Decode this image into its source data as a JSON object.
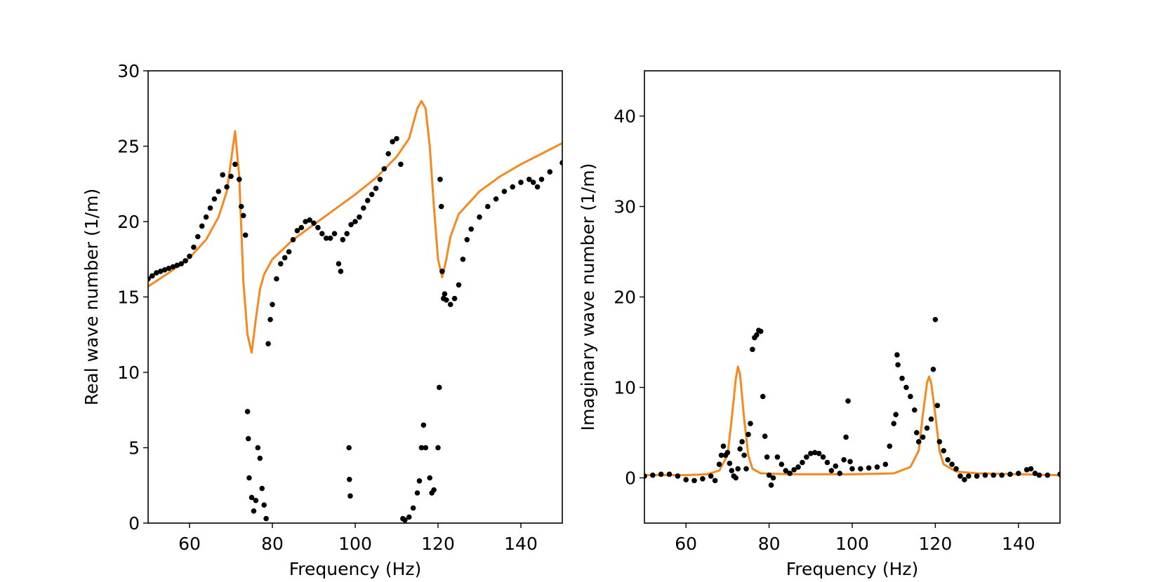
{
  "chart_data": [
    {
      "type": "line",
      "xlabel": "Frequency (Hz)",
      "ylabel": "Real wave number (1/m)",
      "xlim": [
        50,
        150
      ],
      "xticks": [
        60,
        80,
        100,
        120,
        140
      ],
      "ylim": [
        0,
        30
      ],
      "yticks": [
        0,
        5,
        10,
        15,
        20,
        25,
        30
      ],
      "series": [
        {
          "color": "#f5891f",
          "linestyle": "-",
          "x": [
            50,
            55,
            60,
            64,
            67,
            69,
            70,
            71,
            72,
            73,
            74,
            75,
            76,
            77,
            78,
            80,
            85,
            90,
            95,
            100,
            105,
            110,
            113,
            115,
            116,
            117,
            118,
            119,
            120,
            121,
            122,
            123,
            125,
            130,
            135,
            140,
            145,
            150
          ],
          "values": [
            15.7,
            16.6,
            17.6,
            18.8,
            20.3,
            22,
            24,
            26,
            23,
            16,
            12.5,
            11.3,
            13.5,
            15.5,
            16.5,
            17.5,
            18.8,
            19.8,
            20.8,
            21.8,
            22.9,
            24.3,
            25.5,
            27.5,
            28,
            27.5,
            25,
            21,
            17.5,
            16.3,
            17.5,
            19,
            20.5,
            22,
            23,
            23.8,
            24.5,
            25.2
          ]
        },
        {
          "color": "#000000",
          "marker": "o",
          "x": [
            50,
            51,
            52,
            53,
            54,
            55,
            56,
            57,
            58,
            59,
            60,
            61,
            62,
            63,
            64,
            65,
            66,
            67,
            68,
            69,
            70,
            71,
            72,
            72.5,
            73,
            73.5,
            74,
            74.2,
            74.4,
            75,
            75.5,
            76,
            76.5,
            77,
            77.5,
            78,
            78.5,
            79,
            79.5,
            80,
            81,
            82,
            83,
            84,
            85,
            86,
            87,
            88,
            89,
            90,
            91,
            92,
            93,
            94,
            95,
            96,
            96.5,
            97,
            98,
            98.5,
            98.6,
            98.8,
            99,
            100,
            101,
            102,
            103,
            104,
            105,
            106,
            107,
            108,
            109,
            110,
            111,
            111.5,
            112,
            113,
            114,
            115,
            115.5,
            116,
            116.5,
            117,
            118,
            118.5,
            119,
            120,
            120.3,
            120.5,
            120.8,
            121,
            121.3,
            121.6,
            122,
            123,
            124,
            125,
            126,
            127,
            128,
            130,
            132,
            134,
            136,
            138,
            140,
            142,
            143,
            144,
            145,
            147,
            150
          ],
          "values": [
            16.2,
            16.4,
            16.6,
            16.7,
            16.8,
            16.9,
            17,
            17.1,
            17.2,
            17.4,
            17.7,
            18.3,
            19,
            19.7,
            20.3,
            20.9,
            21.5,
            22,
            23.1,
            22.3,
            23,
            23.8,
            22.8,
            21,
            20.4,
            19.1,
            7.4,
            5.6,
            3,
            1.7,
            0.8,
            1.5,
            5,
            4.3,
            2.3,
            1.2,
            0.3,
            11.9,
            13.5,
            14.5,
            16.2,
            17.2,
            17.6,
            18,
            18.8,
            19.4,
            19.6,
            20,
            20.1,
            19.9,
            19.6,
            19.2,
            18.9,
            18.9,
            19.2,
            17.2,
            16.7,
            18.8,
            19.2,
            5,
            2.9,
            1.8,
            19.8,
            20,
            20.3,
            20.9,
            21.4,
            21.8,
            22.2,
            22.8,
            23.5,
            24.5,
            25.3,
            25.5,
            23.8,
            0.3,
            0.2,
            0.4,
            1,
            2,
            2.8,
            5,
            6.5,
            5,
            3,
            2,
            2.2,
            5,
            9,
            22.8,
            21,
            16.7,
            14.9,
            15.2,
            14.8,
            14.5,
            14.9,
            15.8,
            17.5,
            18.8,
            19.5,
            20.3,
            21,
            21.5,
            22,
            22.3,
            22.6,
            22.8,
            22.6,
            22.3,
            22.8,
            23.3,
            23.9
          ]
        }
      ]
    },
    {
      "type": "line",
      "xlabel": "Frequency (Hz)",
      "ylabel": "Imaginary wave number (1/m)",
      "xlim": [
        50,
        150
      ],
      "xticks": [
        60,
        80,
        100,
        120,
        140
      ],
      "ylim": [
        -5,
        45
      ],
      "yticks": [
        0,
        10,
        20,
        30,
        40
      ],
      "series": [
        {
          "color": "#f5891f",
          "linestyle": "-",
          "x": [
            50,
            60,
            65,
            68,
            70,
            71,
            72,
            72.5,
            73,
            74,
            75,
            76,
            78,
            85,
            100,
            110,
            114,
            116,
            117,
            118,
            118.5,
            119,
            120,
            121,
            122,
            125,
            130,
            140,
            150
          ],
          "values": [
            0.3,
            0.3,
            0.4,
            0.8,
            2.5,
            6.5,
            11,
            12.3,
            11.5,
            6.5,
            2.5,
            1,
            0.5,
            0.4,
            0.4,
            0.5,
            1.2,
            3,
            7,
            10.5,
            11.2,
            10.5,
            7,
            3,
            1.5,
            0.7,
            0.5,
            0.4,
            0.3
          ]
        },
        {
          "color": "#000000",
          "marker": "o",
          "x": [
            50,
            52,
            54,
            56,
            58,
            60,
            62,
            64,
            66,
            67,
            68,
            68.5,
            69,
            69.5,
            70,
            70.5,
            71,
            71.5,
            72,
            72.5,
            73,
            73.5,
            74,
            74.5,
            75,
            75.5,
            76,
            76.5,
            77,
            77.5,
            78,
            78.5,
            79,
            79.5,
            80,
            80.5,
            81,
            82,
            83,
            84,
            85,
            86,
            87,
            88,
            89,
            90,
            91,
            92,
            93,
            94,
            95,
            96,
            97,
            98,
            98.5,
            99,
            99.5,
            100,
            102,
            104,
            106,
            108,
            109,
            110,
            110.5,
            110.8,
            111,
            112,
            113,
            114,
            115,
            115.5,
            116,
            117,
            118,
            119,
            119.5,
            120,
            120.5,
            121,
            122,
            123,
            124,
            125,
            126,
            127,
            128,
            130,
            132,
            134,
            136,
            138,
            140,
            142,
            143,
            144,
            145,
            147,
            150
          ],
          "values": [
            0.2,
            0.3,
            0.4,
            0.4,
            0.2,
            -0.2,
            -0.3,
            -0.1,
            0.2,
            -0.3,
            1.5,
            2.5,
            3.5,
            2.5,
            2.8,
            1.6,
            0.8,
            0.2,
            0,
            1,
            3.2,
            4,
            2.5,
            1,
            4.8,
            6,
            14.2,
            15.5,
            15.8,
            16.3,
            16.2,
            9,
            4.6,
            2.3,
            0.3,
            -0.8,
            0,
            2.3,
            1.5,
            0.8,
            0.5,
            0.9,
            1.2,
            1.7,
            2.3,
            2.7,
            2.8,
            2.7,
            2.3,
            1.7,
            0.8,
            1.3,
            0.5,
            2,
            4.5,
            8.5,
            1.8,
            1,
            1,
            1.1,
            1.2,
            1.5,
            3.5,
            6,
            7,
            13.6,
            12.5,
            11,
            10,
            9,
            7.5,
            5,
            4,
            4.5,
            5.5,
            6.5,
            12,
            17.5,
            8,
            4,
            3,
            2,
            1.5,
            1,
            0.2,
            -0.2,
            0.2,
            0.2,
            0.3,
            0.3,
            0.3,
            0.4,
            0.5,
            0.9,
            1,
            0.5,
            0.3,
            0.3,
            0.4
          ]
        }
      ]
    }
  ]
}
